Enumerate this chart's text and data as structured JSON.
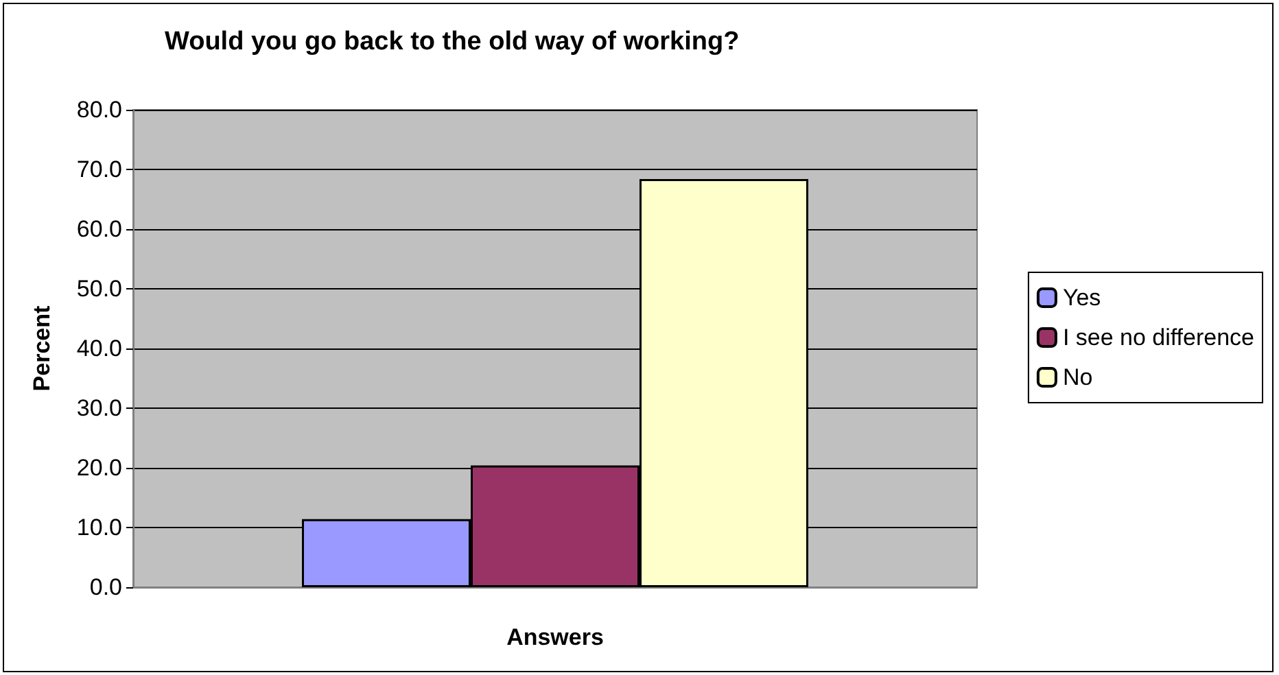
{
  "chart_data": {
    "type": "bar",
    "title": "Would you go back to the old way of working?",
    "xlabel": "Answers",
    "ylabel": "Percent",
    "categories": [
      null
    ],
    "series": [
      {
        "name": "Yes",
        "color": "#9999ff",
        "values": [
          11.4
        ]
      },
      {
        "name": "I see no difference",
        "color": "#993366",
        "values": [
          20.4
        ]
      },
      {
        "name": "No",
        "color": "#ffffcc",
        "values": [
          68.4
        ]
      }
    ],
    "ylim": [
      0,
      80
    ],
    "yticks": [
      {
        "value": 0,
        "label": "0.0"
      },
      {
        "value": 10,
        "label": "10.0"
      },
      {
        "value": 20,
        "label": "20.0"
      },
      {
        "value": 30,
        "label": "30.0"
      },
      {
        "value": 40,
        "label": "40.0"
      },
      {
        "value": 50,
        "label": "50.0"
      },
      {
        "value": 60,
        "label": "60.0"
      },
      {
        "value": 70,
        "label": "70.0"
      },
      {
        "value": 80,
        "label": "80.0"
      }
    ],
    "grid": "y",
    "legend": "right"
  }
}
